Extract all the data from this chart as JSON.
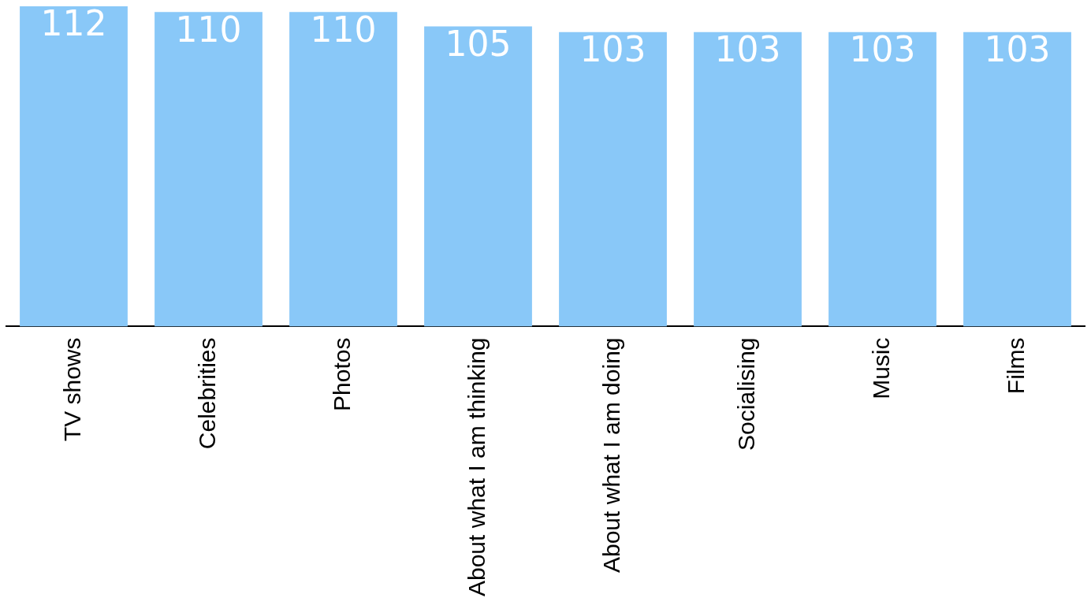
{
  "chart_data": {
    "type": "bar",
    "categories": [
      "TV shows",
      "Celebrities",
      "Photos",
      "About what I am thinking",
      "About what I am doing",
      "Socialising",
      "Music",
      "Films"
    ],
    "values": [
      112,
      110,
      110,
      105,
      103,
      103,
      103,
      103
    ],
    "color": "#89c8f8",
    "ylim": [
      0,
      112
    ],
    "data_labels": true,
    "grid": false,
    "legend": false
  }
}
